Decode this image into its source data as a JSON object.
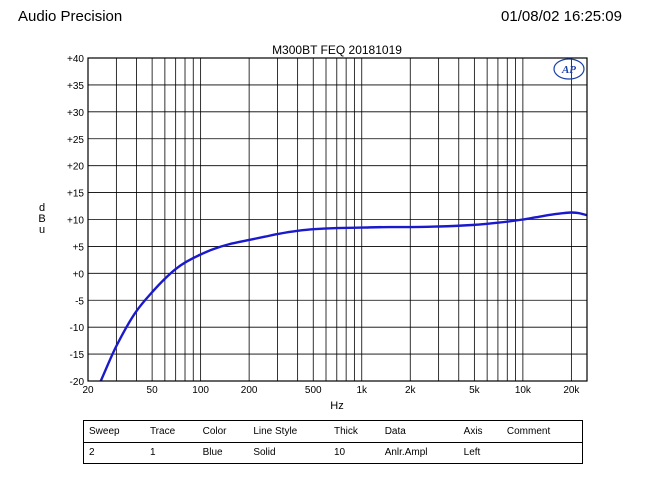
{
  "header": {
    "brand": "Audio Precision",
    "timestamp": "01/08/02 16:25:09"
  },
  "chart_data": {
    "type": "line",
    "title": "M300BT  FEQ  20181019",
    "xlabel": "Hz",
    "ylabel": "dBu",
    "x_scale": "log",
    "xlim": [
      20,
      25000
    ],
    "ylim": [
      -20,
      40
    ],
    "grid": true,
    "logo_text": "AP",
    "line_color": "#1a1acc",
    "x_tick_labels": [
      {
        "value": 20,
        "label": "20"
      },
      {
        "value": 50,
        "label": "50"
      },
      {
        "value": 100,
        "label": "100"
      },
      {
        "value": 200,
        "label": "200"
      },
      {
        "value": 500,
        "label": "500"
      },
      {
        "value": 1000,
        "label": "1k"
      },
      {
        "value": 2000,
        "label": "2k"
      },
      {
        "value": 5000,
        "label": "5k"
      },
      {
        "value": 10000,
        "label": "10k"
      },
      {
        "value": 20000,
        "label": "20k"
      }
    ],
    "y_ticks": [
      {
        "value": 40,
        "label": "+40"
      },
      {
        "value": 35,
        "label": "+35"
      },
      {
        "value": 30,
        "label": "+30"
      },
      {
        "value": 25,
        "label": "+25"
      },
      {
        "value": 20,
        "label": "+20"
      },
      {
        "value": 15,
        "label": "+15"
      },
      {
        "value": 10,
        "label": "+10"
      },
      {
        "value": 5,
        "label": "+5"
      },
      {
        "value": 0,
        "label": "+0"
      },
      {
        "value": -5,
        "label": "-5"
      },
      {
        "value": -10,
        "label": "-10"
      },
      {
        "value": -15,
        "label": "-15"
      },
      {
        "value": -20,
        "label": "-20"
      }
    ],
    "series": [
      {
        "x": [
          24,
          30,
          40,
          50,
          60,
          70,
          80,
          100,
          120,
          150,
          200,
          250,
          300,
          400,
          500,
          700,
          1000,
          1500,
          2000,
          3000,
          5000,
          7000,
          10000,
          12000,
          15000,
          18000,
          20000,
          22000,
          25000
        ],
        "y": [
          -20,
          -13.5,
          -7,
          -3.5,
          -1,
          0.8,
          2.0,
          3.5,
          4.5,
          5.4,
          6.2,
          6.8,
          7.3,
          7.9,
          8.2,
          8.4,
          8.5,
          8.6,
          8.6,
          8.7,
          9.0,
          9.4,
          10.0,
          10.4,
          10.9,
          11.2,
          11.3,
          11.2,
          10.8
        ]
      }
    ]
  },
  "legend_table": {
    "headers": [
      "Sweep",
      "Trace",
      "Color",
      "Line Style",
      "Thick",
      "Data",
      "Axis",
      "Comment"
    ],
    "rows": [
      [
        "2",
        "1",
        "Blue",
        "Solid",
        "10",
        "Anlr.Ampl",
        "Left",
        ""
      ]
    ]
  }
}
